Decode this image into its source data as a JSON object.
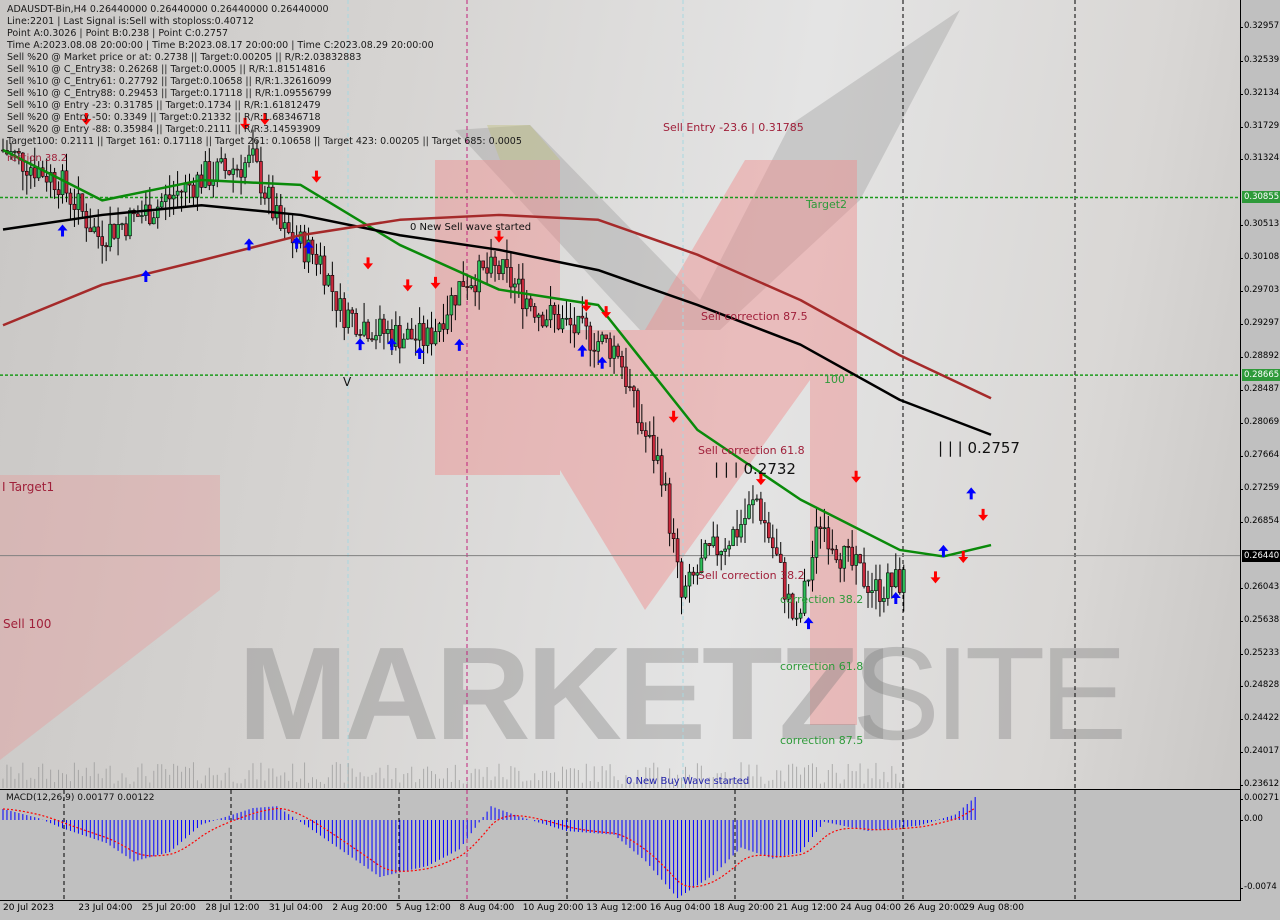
{
  "info_panel": {
    "lines": [
      "ADAUSDT-Bin,H4  0.26440000 0.26440000 0.26440000 0.26440000",
      "Line:2201 | Last Signal is:Sell with stoploss:0.40712",
      "Point A:0.3026 | Point B:0.238 | Point C:0.2757",
      "Time A:2023.08.08 20:00:00 | Time B:2023.08.17 20:00:00 | Time C:2023.08.29 20:00:00",
      "Sell %20 @ Market price or at: 0.2738 || Target:0.00205 || R/R:2.03832883",
      "Sell %10 @ C_Entry38: 0.26268 || Target:0.0005 || R/R:1.81514816",
      "Sell %10 @ C_Entry61: 0.27792 || Target:0.10658 || R/R:1.32616099",
      "Sell %10 @ C_Entry88: 0.29453 || Target:0.17118 || R/R:1.09556799",
      "Sell %10 @ Entry -23: 0.31785 || Target:0.1734 || R/R:1.61812479",
      "Sell %20 @ Entry -50: 0.3349 || Target:0.21332 || R/R:1.68346718",
      "Sell %20 @ Entry -88: 0.35984 || Target:0.2111 || R/R:3.14593909",
      "Target100: 0.2111 || Target 161: 0.17118 || Target 261: 0.10658 || Target 423: 0.00205 || Target 685: 0.0005"
    ],
    "overlay_label": "rection 38.2"
  },
  "annotations": {
    "sell_entry": "Sell Entry -23.6 | 0.31785",
    "target2": "Target2",
    "new_sell_wave": "0 New Sell wave started",
    "sell_corr_875": "Sell correction 87.5",
    "level_100": "100",
    "sell_corr_618": "Sell correction 61.8",
    "point_b_label": "| | | 0.2732",
    "point_c_label": "| | | 0.2757",
    "sell_corr_382": "Sell correction 38.2",
    "corr_382": "correction 38.2",
    "corr_618": "correction 61.8",
    "corr_875": "correction 87.5",
    "new_buy_wave": "0 New Buy Wave started",
    "target1": "I Target1",
    "sell_100": "Sell 100",
    "v_mark": "V"
  },
  "watermark": {
    "brand": "MARKETZI",
    "suffix": "SITE"
  },
  "colors": {
    "bull": "#2fbf5a",
    "bear": "#c8283c",
    "ma_fast": "#0a8a0a",
    "ma_mid": "#000000",
    "ma_slow": "#a52a2a",
    "level": "#1a9a1a",
    "sell_arrow": "#ff0000",
    "buy_arrow": "#0000ff",
    "macd_hist": "#0000ff",
    "macd_signal": "#ff0000"
  },
  "chart_data": {
    "type": "candlestick",
    "symbol": "ADAUSDT-Bin",
    "timeframe": "H4",
    "ylim": [
      0.23612,
      0.32957
    ],
    "y_ticks": [
      "0.32957",
      "0.32539",
      "0.32134",
      "0.31729",
      "0.31324",
      "0.30513",
      "0.30108",
      "0.29703",
      "0.29297",
      "0.28892",
      "0.28487",
      "0.28069",
      "0.27664",
      "0.27259",
      "0.26854",
      "0.26043",
      "0.25638",
      "0.25233",
      "0.24828",
      "0.24422",
      "0.24017",
      "0.23612"
    ],
    "y_tick_values": [
      0.32957,
      0.32539,
      0.32134,
      0.31729,
      0.31324,
      0.30513,
      0.30108,
      0.29703,
      0.29297,
      0.28892,
      0.28487,
      0.28069,
      0.27664,
      0.27259,
      0.26854,
      0.26043,
      0.25638,
      0.25233,
      0.24828,
      0.24422,
      0.24017,
      0.23612
    ],
    "x_ticks": [
      {
        "label": "20 Jul 2023",
        "t": "2023-07-20 00:00"
      },
      {
        "label": "23 Jul 04:00",
        "t": "2023-07-23 04:00"
      },
      {
        "label": "25 Jul 20:00",
        "t": "2023-07-25 20:00"
      },
      {
        "label": "28 Jul 12:00",
        "t": "2023-07-28 12:00"
      },
      {
        "label": "31 Jul 04:00",
        "t": "2023-07-31 04:00"
      },
      {
        "label": "2 Aug 20:00",
        "t": "2023-08-02 20:00"
      },
      {
        "label": "5 Aug 12:00",
        "t": "2023-08-05 12:00"
      },
      {
        "label": "8 Aug 04:00",
        "t": "2023-08-08 04:00"
      },
      {
        "label": "10 Aug 20:00",
        "t": "2023-08-10 20:00"
      },
      {
        "label": "13 Aug 12:00",
        "t": "2023-08-13 12:00"
      },
      {
        "label": "16 Aug 04:00",
        "t": "2023-08-16 04:00"
      },
      {
        "label": "18 Aug 20:00",
        "t": "2023-08-18 20:00"
      },
      {
        "label": "21 Aug 12:00",
        "t": "2023-08-21 12:00"
      },
      {
        "label": "24 Aug 04:00",
        "t": "2023-08-24 04:00"
      },
      {
        "label": "26 Aug 20:00",
        "t": "2023-08-26 20:00"
      },
      {
        "label": "29 Aug 08:00",
        "t": "2023-08-29 08:00"
      }
    ],
    "price_path": [
      [
        "2023-07-20 00:00",
        0.3144
      ],
      [
        "2023-07-22 08:00",
        0.3107
      ],
      [
        "2023-07-24 00:00",
        0.3039
      ],
      [
        "2023-07-26 04:00",
        0.307
      ],
      [
        "2023-07-28 08:00",
        0.311
      ],
      [
        "2023-07-30 12:00",
        0.313
      ],
      [
        "2023-07-31 16:00",
        0.3045
      ],
      [
        "2023-08-02 08:00",
        0.301
      ],
      [
        "2023-08-03 04:00",
        0.2947
      ],
      [
        "2023-08-04 20:00",
        0.292
      ],
      [
        "2023-08-06 20:00",
        0.291
      ],
      [
        "2023-08-08 08:00",
        0.2984
      ],
      [
        "2023-08-09 20:00",
        0.2996
      ],
      [
        "2023-08-11 12:00",
        0.2947
      ],
      [
        "2023-08-13 04:00",
        0.292
      ],
      [
        "2023-08-14 20:00",
        0.2898
      ],
      [
        "2023-08-15 16:00",
        0.2811
      ],
      [
        "2023-08-16 16:00",
        0.275
      ],
      [
        "2023-08-17 12:00",
        0.259
      ],
      [
        "2023-08-18 12:00",
        0.264
      ],
      [
        "2023-08-19 20:00",
        0.2676
      ],
      [
        "2023-08-20 16:00",
        0.2713
      ],
      [
        "2023-08-21 12:00",
        0.264
      ],
      [
        "2023-08-22 08:00",
        0.2552
      ],
      [
        "2023-08-23 08:00",
        0.2688
      ],
      [
        "2023-08-24 08:00",
        0.264
      ],
      [
        "2023-08-25 16:00",
        0.2602
      ],
      [
        "2023-08-26 20:00",
        0.2614
      ]
    ],
    "current_price": "0.26440",
    "current_price_value": 0.2644,
    "levels": [
      {
        "label": "0.30855",
        "value": 0.30855
      },
      {
        "label": "0.28665",
        "value": 0.28665
      }
    ],
    "moving_averages": [
      {
        "color": "ma_fast",
        "points": [
          [
            "2023-07-20 00:00",
            0.3144
          ],
          [
            "2023-07-24 04:00",
            0.3082
          ],
          [
            "2023-07-28 08:00",
            0.3107
          ],
          [
            "2023-08-01 12:00",
            0.3101
          ],
          [
            "2023-08-05 16:00",
            0.3027
          ],
          [
            "2023-08-09 20:00",
            0.2972
          ],
          [
            "2023-08-14 00:00",
            0.2953
          ],
          [
            "2023-08-18 04:00",
            0.2799
          ],
          [
            "2023-08-22 12:00",
            0.2713
          ],
          [
            "2023-08-26 16:00",
            0.2651
          ],
          [
            "2023-08-28 12:00",
            0.2643
          ],
          [
            "2023-08-30 12:00",
            0.2657
          ]
        ]
      },
      {
        "color": "ma_mid",
        "points": [
          [
            "2023-07-20 00:00",
            0.3046
          ],
          [
            "2023-07-24 04:00",
            0.3064
          ],
          [
            "2023-07-28 08:00",
            0.3076
          ],
          [
            "2023-08-01 12:00",
            0.3064
          ],
          [
            "2023-08-05 16:00",
            0.3039
          ],
          [
            "2023-08-09 20:00",
            0.3021
          ],
          [
            "2023-08-14 00:00",
            0.2996
          ],
          [
            "2023-08-18 04:00",
            0.2953
          ],
          [
            "2023-08-22 12:00",
            0.2904
          ],
          [
            "2023-08-26 16:00",
            0.2836
          ],
          [
            "2023-08-30 12:00",
            0.2793
          ]
        ]
      },
      {
        "color": "ma_slow",
        "points": [
          [
            "2023-07-20 00:00",
            0.2928
          ],
          [
            "2023-07-24 04:00",
            0.2978
          ],
          [
            "2023-07-28 08:00",
            0.3008
          ],
          [
            "2023-08-01 12:00",
            0.3039
          ],
          [
            "2023-08-05 16:00",
            0.3058
          ],
          [
            "2023-08-09 20:00",
            0.3064
          ],
          [
            "2023-08-14 00:00",
            0.3058
          ],
          [
            "2023-08-18 04:00",
            0.3015
          ],
          [
            "2023-08-22 12:00",
            0.2959
          ],
          [
            "2023-08-26 16:00",
            0.2891
          ],
          [
            "2023-08-30 12:00",
            0.2838
          ]
        ]
      }
    ],
    "sell_signals": [
      [
        "2023-07-23 12:00",
        0.3181
      ],
      [
        "2023-07-30 04:00",
        0.3175
      ],
      [
        "2023-07-31 00:00",
        0.3181
      ],
      [
        "2023-08-02 04:00",
        0.311
      ],
      [
        "2023-08-04 08:00",
        0.3003
      ],
      [
        "2023-08-06 00:00",
        0.2976
      ],
      [
        "2023-08-07 04:00",
        0.2979
      ],
      [
        "2023-08-09 20:00",
        0.3036
      ],
      [
        "2023-08-13 12:00",
        0.2951
      ],
      [
        "2023-08-14 08:00",
        0.2943
      ],
      [
        "2023-08-17 04:00",
        0.2814
      ],
      [
        "2023-08-20 20:00",
        0.2737
      ],
      [
        "2023-08-24 20:00",
        0.274
      ],
      [
        "2023-08-28 04:00",
        0.2616
      ],
      [
        "2023-08-29 08:00",
        0.2641
      ],
      [
        "2023-08-30 04:00",
        0.2693
      ]
    ],
    "buy_signals": [
      [
        "2023-07-22 12:00",
        0.3046
      ],
      [
        "2023-07-26 00:00",
        0.299
      ],
      [
        "2023-07-30 08:00",
        0.3029
      ],
      [
        "2023-08-01 08:00",
        0.3031
      ],
      [
        "2023-08-01 20:00",
        0.3025
      ],
      [
        "2023-08-04 00:00",
        0.2906
      ],
      [
        "2023-08-05 08:00",
        0.2906
      ],
      [
        "2023-08-06 12:00",
        0.2895
      ],
      [
        "2023-08-08 04:00",
        0.2905
      ],
      [
        "2023-08-13 08:00",
        0.2898
      ],
      [
        "2023-08-14 04:00",
        0.2883
      ],
      [
        "2023-08-22 20:00",
        0.2562
      ],
      [
        "2023-08-26 12:00",
        0.2593
      ],
      [
        "2023-08-28 12:00",
        0.2651
      ],
      [
        "2023-08-29 16:00",
        0.2722
      ]
    ],
    "macd": {
      "label": "MACD(12,26,9) 0.00177 0.00122",
      "y_ticks": [
        "0.00271",
        "0.00",
        "-0.0074"
      ],
      "y_tick_values": [
        0.00271,
        0,
        -0.0074
      ],
      "histogram": [
        [
          "2023-07-20 00:00",
          0.0012
        ],
        [
          "2023-07-21 12:00",
          0.0002
        ],
        [
          "2023-07-22 12:00",
          -0.0009
        ],
        [
          "2023-07-24 08:00",
          -0.0025
        ],
        [
          "2023-07-25 12:00",
          -0.0045
        ],
        [
          "2023-07-27 00:00",
          -0.0035
        ],
        [
          "2023-07-28 08:00",
          -0.0005
        ],
        [
          "2023-07-30 12:00",
          0.0013
        ],
        [
          "2023-07-31 12:00",
          0.0015
        ],
        [
          "2023-08-01 20:00",
          -0.0008
        ],
        [
          "2023-08-03 08:00",
          -0.0035
        ],
        [
          "2023-08-04 20:00",
          -0.0062
        ],
        [
          "2023-08-06 20:00",
          -0.005
        ],
        [
          "2023-08-08 04:00",
          -0.0032
        ],
        [
          "2023-08-09 12:00",
          0.0015
        ],
        [
          "2023-08-10 16:00",
          0.0004
        ],
        [
          "2023-08-12 16:00",
          -0.0012
        ],
        [
          "2023-08-14 16:00",
          -0.0016
        ],
        [
          "2023-08-16 00:00",
          -0.0045
        ],
        [
          "2023-08-17 08:00",
          -0.0085
        ],
        [
          "2023-08-18 20:00",
          -0.006
        ],
        [
          "2023-08-20 00:00",
          -0.003
        ],
        [
          "2023-08-21 08:00",
          -0.0042
        ],
        [
          "2023-08-22 12:00",
          -0.0035
        ],
        [
          "2023-08-23 12:00",
          -0.0002
        ],
        [
          "2023-08-25 08:00",
          -0.0012
        ],
        [
          "2023-08-27 12:00",
          -0.0006
        ],
        [
          "2023-08-29 00:00",
          0.0006
        ],
        [
          "2023-08-29 20:00",
          0.0025
        ]
      ]
    }
  }
}
